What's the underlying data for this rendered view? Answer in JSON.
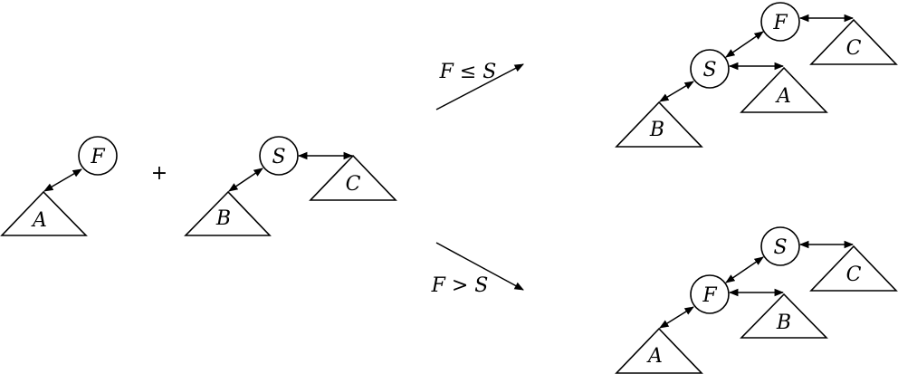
{
  "left_heap": {
    "root": "F",
    "subtree": "A"
  },
  "plus_sign": "+",
  "right_heap": {
    "root": "S",
    "subtree_left": "B",
    "subtree_right": "C"
  },
  "upper_branch": {
    "condition": "F ≤ S",
    "root": "F",
    "child": "S",
    "right_subtree": "C",
    "child_left": "B",
    "child_right": "A"
  },
  "lower_branch": {
    "condition": "F > S",
    "root": "S",
    "child": "F",
    "right_subtree": "C",
    "child_left": "A",
    "child_right": "B"
  }
}
